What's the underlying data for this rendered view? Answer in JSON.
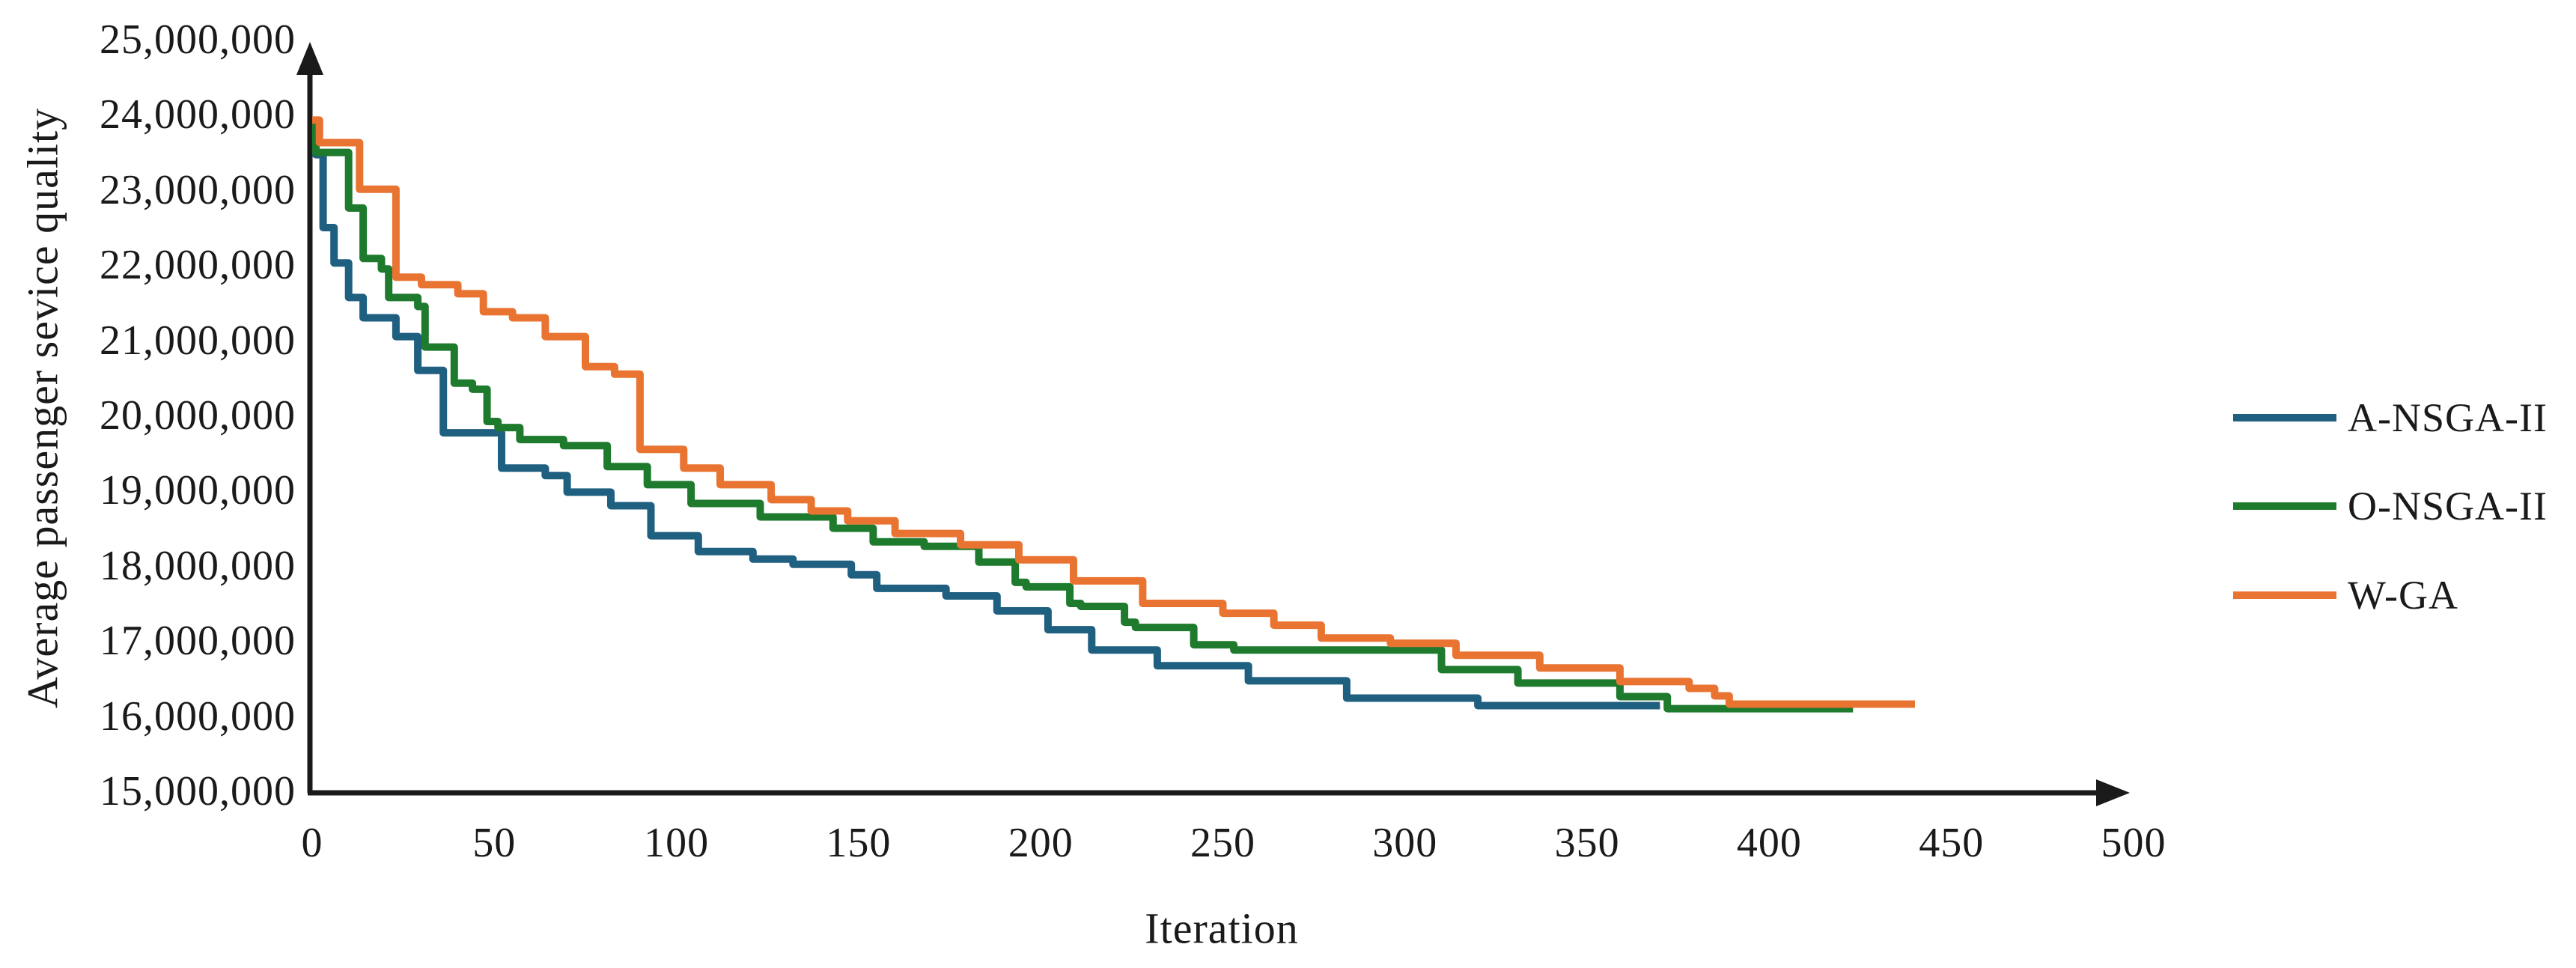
{
  "chart_data": {
    "type": "line",
    "line_style": "step-after",
    "title": "",
    "xlabel": "Iteration",
    "ylabel": "Average passenger sevice quality",
    "xlim": [
      0,
      500
    ],
    "ylim": [
      15000000,
      25000000
    ],
    "grid": false,
    "legend_position": "right-outside",
    "axis_color": "#1a1a1a",
    "x_ticks": [
      {
        "label": "0",
        "value": 0
      },
      {
        "label": "50",
        "value": 50
      },
      {
        "label": "100",
        "value": 100
      },
      {
        "label": "150",
        "value": 150
      },
      {
        "label": "200",
        "value": 200
      },
      {
        "label": "250",
        "value": 250
      },
      {
        "label": "300",
        "value": 300
      },
      {
        "label": "350",
        "value": 350
      },
      {
        "label": "400",
        "value": 400
      },
      {
        "label": "450",
        "value": 450
      },
      {
        "label": "500",
        "value": 500
      }
    ],
    "y_ticks": [
      {
        "label": "25,000,000",
        "value": 25000000
      },
      {
        "label": "24,000,000",
        "value": 24000000
      },
      {
        "label": "23,000,000",
        "value": 23000000
      },
      {
        "label": "22,000,000",
        "value": 22000000
      },
      {
        "label": "21,000,000",
        "value": 21000000
      },
      {
        "label": "20,000,000",
        "value": 20000000
      },
      {
        "label": "19,000,000",
        "value": 19000000
      },
      {
        "label": "18,000,000",
        "value": 18000000
      },
      {
        "label": "17,000,000",
        "value": 17000000
      },
      {
        "label": "16,000,000",
        "value": 16000000
      },
      {
        "label": "15,000,000",
        "value": 15000000
      }
    ],
    "series": [
      {
        "name": "A-NSGA-II",
        "color": "#1F5F80",
        "points": [
          [
            0,
            23900000
          ],
          [
            1,
            23470000
          ],
          [
            3,
            22500000
          ],
          [
            6,
            22030000
          ],
          [
            10,
            21570000
          ],
          [
            14,
            21300000
          ],
          [
            23,
            21050000
          ],
          [
            29,
            20600000
          ],
          [
            36,
            19770000
          ],
          [
            52,
            19300000
          ],
          [
            64,
            19200000
          ],
          [
            70,
            18980000
          ],
          [
            82,
            18800000
          ],
          [
            93,
            18400000
          ],
          [
            106,
            18190000
          ],
          [
            121,
            18090000
          ],
          [
            132,
            18020000
          ],
          [
            148,
            17880000
          ],
          [
            155,
            17700000
          ],
          [
            174,
            17600000
          ],
          [
            188,
            17400000
          ],
          [
            202,
            17150000
          ],
          [
            214,
            16880000
          ],
          [
            232,
            16670000
          ],
          [
            257,
            16470000
          ],
          [
            284,
            16240000
          ],
          [
            320,
            16140000
          ],
          [
            370,
            16140000
          ]
        ]
      },
      {
        "name": "O-NSGA-II",
        "color": "#1E7A2D",
        "points": [
          [
            0,
            23900000
          ],
          [
            1,
            23500000
          ],
          [
            10,
            22760000
          ],
          [
            14,
            22090000
          ],
          [
            19,
            21950000
          ],
          [
            21,
            21570000
          ],
          [
            29,
            21450000
          ],
          [
            31,
            20910000
          ],
          [
            39,
            20430000
          ],
          [
            44,
            20350000
          ],
          [
            48,
            19920000
          ],
          [
            51,
            19840000
          ],
          [
            57,
            19680000
          ],
          [
            69,
            19600000
          ],
          [
            81,
            19320000
          ],
          [
            92,
            19080000
          ],
          [
            104,
            18830000
          ],
          [
            123,
            18650000
          ],
          [
            143,
            18500000
          ],
          [
            154,
            18320000
          ],
          [
            168,
            18260000
          ],
          [
            183,
            18050000
          ],
          [
            193,
            17780000
          ],
          [
            196,
            17720000
          ],
          [
            208,
            17500000
          ],
          [
            211,
            17460000
          ],
          [
            223,
            17250000
          ],
          [
            226,
            17180000
          ],
          [
            242,
            16950000
          ],
          [
            253,
            16880000
          ],
          [
            310,
            16620000
          ],
          [
            331,
            16440000
          ],
          [
            359,
            16260000
          ],
          [
            372,
            16100000
          ],
          [
            423,
            16100000
          ]
        ]
      },
      {
        "name": "W-GA",
        "color": "#E97432",
        "points": [
          [
            0,
            23930000
          ],
          [
            2,
            23630000
          ],
          [
            13,
            23010000
          ],
          [
            23,
            21840000
          ],
          [
            30,
            21740000
          ],
          [
            40,
            21620000
          ],
          [
            47,
            21380000
          ],
          [
            55,
            21300000
          ],
          [
            64,
            21050000
          ],
          [
            75,
            20650000
          ],
          [
            83,
            20550000
          ],
          [
            90,
            19550000
          ],
          [
            102,
            19300000
          ],
          [
            112,
            19080000
          ],
          [
            126,
            18880000
          ],
          [
            137,
            18730000
          ],
          [
            147,
            18600000
          ],
          [
            160,
            18430000
          ],
          [
            178,
            18280000
          ],
          [
            194,
            18080000
          ],
          [
            209,
            17800000
          ],
          [
            228,
            17500000
          ],
          [
            250,
            17370000
          ],
          [
            264,
            17210000
          ],
          [
            277,
            17040000
          ],
          [
            296,
            16970000
          ],
          [
            314,
            16810000
          ],
          [
            337,
            16640000
          ],
          [
            359,
            16460000
          ],
          [
            378,
            16370000
          ],
          [
            385,
            16270000
          ],
          [
            389,
            16160000
          ],
          [
            440,
            16160000
          ]
        ]
      }
    ]
  }
}
